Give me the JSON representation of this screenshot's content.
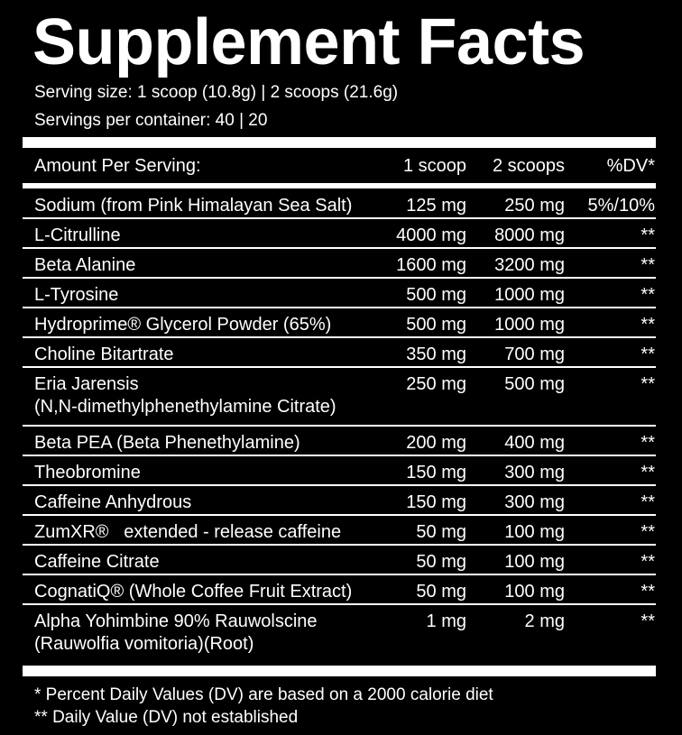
{
  "title": "Supplement Facts",
  "serving_size": "Serving size: 1 scoop (10.8g) | 2 scoops (21.6g)",
  "servings_per_container": "Servings per container: 40 | 20",
  "header": [
    "Amount Per Serving:",
    "1 scoop",
    "2 scoops",
    "%DV*"
  ],
  "rows": [
    {
      "name": [
        "Sodium (from Pink Himalayan Sea Salt)"
      ],
      "one": "125 mg",
      "two": "250 mg",
      "dv": "5%/10%"
    },
    {
      "name": [
        "L-Citrulline"
      ],
      "one": "4000 mg",
      "two": "8000 mg",
      "dv": "**"
    },
    {
      "name": [
        "Beta Alanine"
      ],
      "one": "1600 mg",
      "two": "3200 mg",
      "dv": "**"
    },
    {
      "name": [
        "L-Tyrosine"
      ],
      "one": "500 mg",
      "two": "1000 mg",
      "dv": "**"
    },
    {
      "name": [
        "Hydroprime® Glycerol Powder (65%)"
      ],
      "one": "500 mg",
      "two": "1000 mg",
      "dv": "**"
    },
    {
      "name": [
        "Choline Bitartrate"
      ],
      "one": "350 mg",
      "two": "700 mg",
      "dv": "**"
    },
    {
      "name": [
        "Eria Jarensis",
        "(N,N-dimethylphenethylamine Citrate)"
      ],
      "one": "250 mg",
      "two": "500 mg",
      "dv": "**"
    },
    {
      "name": [
        "Beta PEA (Beta Phenethylamine)"
      ],
      "one": "200 mg",
      "two": "400 mg",
      "dv": "**"
    },
    {
      "name": [
        "Theobromine"
      ],
      "one": "150 mg",
      "two": "300 mg",
      "dv": "**"
    },
    {
      "name": [
        "Caffeine Anhydrous"
      ],
      "one": "150 mg",
      "two": "300 mg",
      "dv": "**"
    },
    {
      "name": [
        "ZumXR®   extended - release caffeine"
      ],
      "one": "50 mg",
      "two": "100 mg",
      "dv": "**"
    },
    {
      "name": [
        "Caffeine Citrate"
      ],
      "one": "50 mg",
      "two": "100 mg",
      "dv": "**"
    },
    {
      "name": [
        "CognatiQ® (Whole Coffee Fruit Extract)"
      ],
      "one": "50 mg",
      "two": "100 mg",
      "dv": "**"
    },
    {
      "name": [
        "Alpha Yohimbine 90% Rauwolscine",
        "(Rauwolfia vomitoria)(Root)"
      ],
      "one": "1 mg",
      "two": "2 mg",
      "dv": "**"
    }
  ],
  "footnotes": [
    "* Percent Daily Values (DV) are based on a 2000 calorie diet",
    "** Daily Value (DV) not established"
  ]
}
